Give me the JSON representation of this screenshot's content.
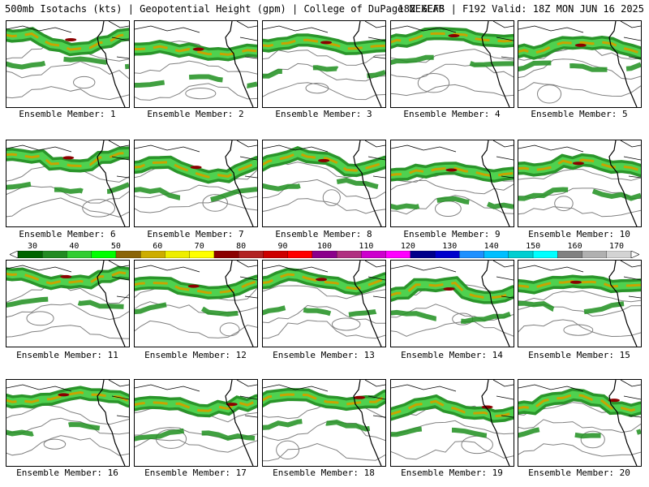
{
  "header": {
    "left": "500mb Isotachs (kts) | Geopotential Height (gpm) | College of DuPage NEXLAB",
    "right": "18Z GEFS | F192 Valid: 18Z MON JUN 16 2025"
  },
  "label_prefix": "Ensemble Member:",
  "members": [
    "1",
    "2",
    "3",
    "4",
    "5",
    "6",
    "7",
    "8",
    "9",
    "10",
    "11",
    "12",
    "13",
    "14",
    "15",
    "16",
    "17",
    "18",
    "19",
    "20"
  ],
  "scale": {
    "ticks": [
      "30",
      "40",
      "50",
      "60",
      "70",
      "80",
      "90",
      "100",
      "110",
      "120",
      "130",
      "140",
      "150",
      "160",
      "170"
    ],
    "colors": [
      "#006400",
      "#228b22",
      "#32cd32",
      "#00ff00",
      "#8b6508",
      "#cdad00",
      "#eeee00",
      "#ffff00",
      "#8b0000",
      "#b22222",
      "#cd0000",
      "#ff0000",
      "#8b008b",
      "#b03080",
      "#cd00cd",
      "#ff00ff",
      "#00008b",
      "#0000cd",
      "#1e90ff",
      "#00bfff",
      "#00ced1",
      "#00ffff",
      "#808080",
      "#b0b0b0",
      "#d3d3d3"
    ]
  },
  "colors": {
    "jet_low": "#1f8f1f",
    "jet_mid": "#4fd14f",
    "jet_core": "#c8a400",
    "jet_max": "#8b0000",
    "height_contour": "#808080",
    "coastline": "#000000"
  }
}
